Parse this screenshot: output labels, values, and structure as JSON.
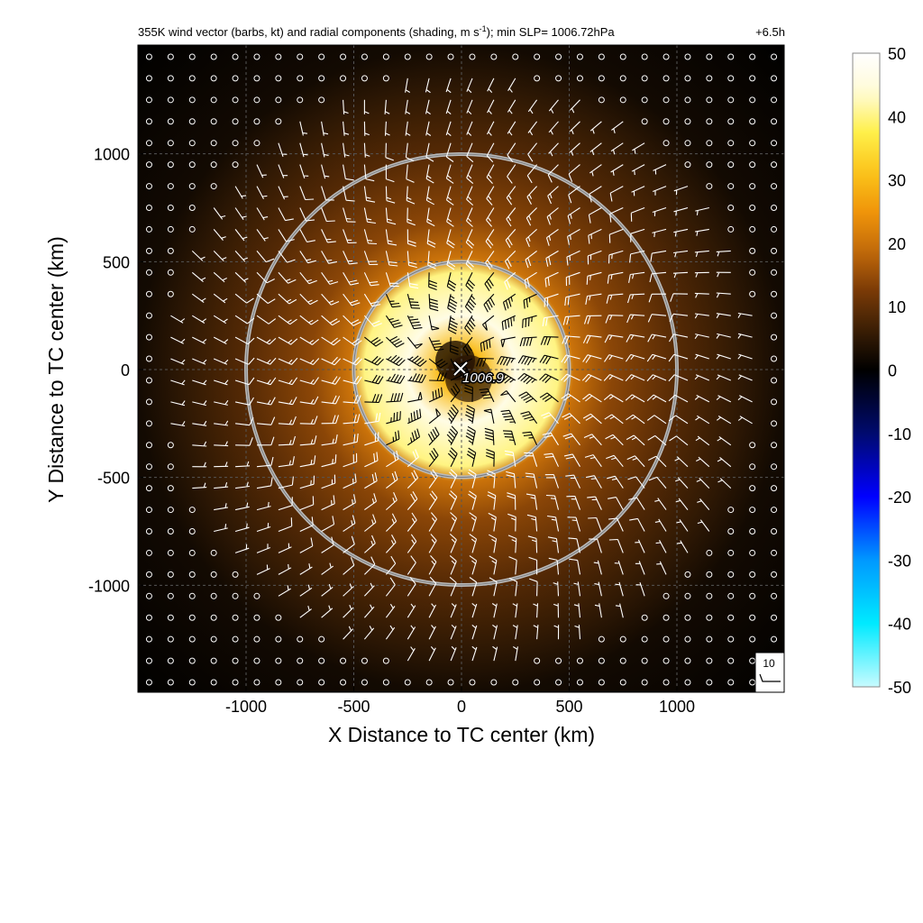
{
  "header": {
    "title_pre": "355K wind vector (barbs, kt) and radial components (shading, m s",
    "title_sup": "-1",
    "title_post": "); min SLP= 1006.72hPa",
    "time_label": "+6.5h"
  },
  "colors": {
    "shading_positive": [
      "#000000",
      "#3a1e05",
      "#7a3a06",
      "#c26a0a",
      "#f0950a",
      "#fbc41a",
      "#fff04a",
      "#fffbd6",
      "#ffffff"
    ],
    "shading_negative": [
      "#000000",
      "#000a6e",
      "#0000ff",
      "#0098ff",
      "#00eaff",
      "#c8fbff"
    ],
    "ring_color": "#bbbbbb",
    "barb_color": "#ffffff"
  },
  "chart_data": {
    "type": "heatmap",
    "title": "355K wind vector (barbs, kt) and radial components (shading, m s-1); min SLP= 1006.72hPa",
    "xlabel": "X Distance to TC center (km)",
    "ylabel": "Y Distance to TC center (km)",
    "xlim": [
      -1500,
      1500
    ],
    "ylim": [
      -1500,
      1500
    ],
    "xticks": [
      -1000,
      -500,
      0,
      500,
      1000
    ],
    "yticks": [
      1000,
      500,
      0,
      -500,
      -1000
    ],
    "grid": true,
    "grid_style": "dashed",
    "center_marker": {
      "x": 0,
      "y": 0,
      "label": "1006.9"
    },
    "range_rings_km": [
      500,
      1000
    ],
    "colorbar": {
      "min": -50,
      "max": 50,
      "ticks": [
        50,
        40,
        30,
        20,
        10,
        0,
        -10,
        -20,
        -30,
        -40,
        -50
      ]
    },
    "barb_reference": {
      "label": "10",
      "unit": "kt"
    },
    "radial_profile": [
      {
        "r_km": 0,
        "value": 2
      },
      {
        "r_km": 100,
        "value": 30
      },
      {
        "r_km": 250,
        "value": 46
      },
      {
        "r_km": 450,
        "value": 40
      },
      {
        "r_km": 520,
        "value": 20
      },
      {
        "r_km": 700,
        "value": 14
      },
      {
        "r_km": 1000,
        "value": 9
      },
      {
        "r_km": 1300,
        "value": 5
      },
      {
        "r_km": 1500,
        "value": 2
      }
    ]
  }
}
